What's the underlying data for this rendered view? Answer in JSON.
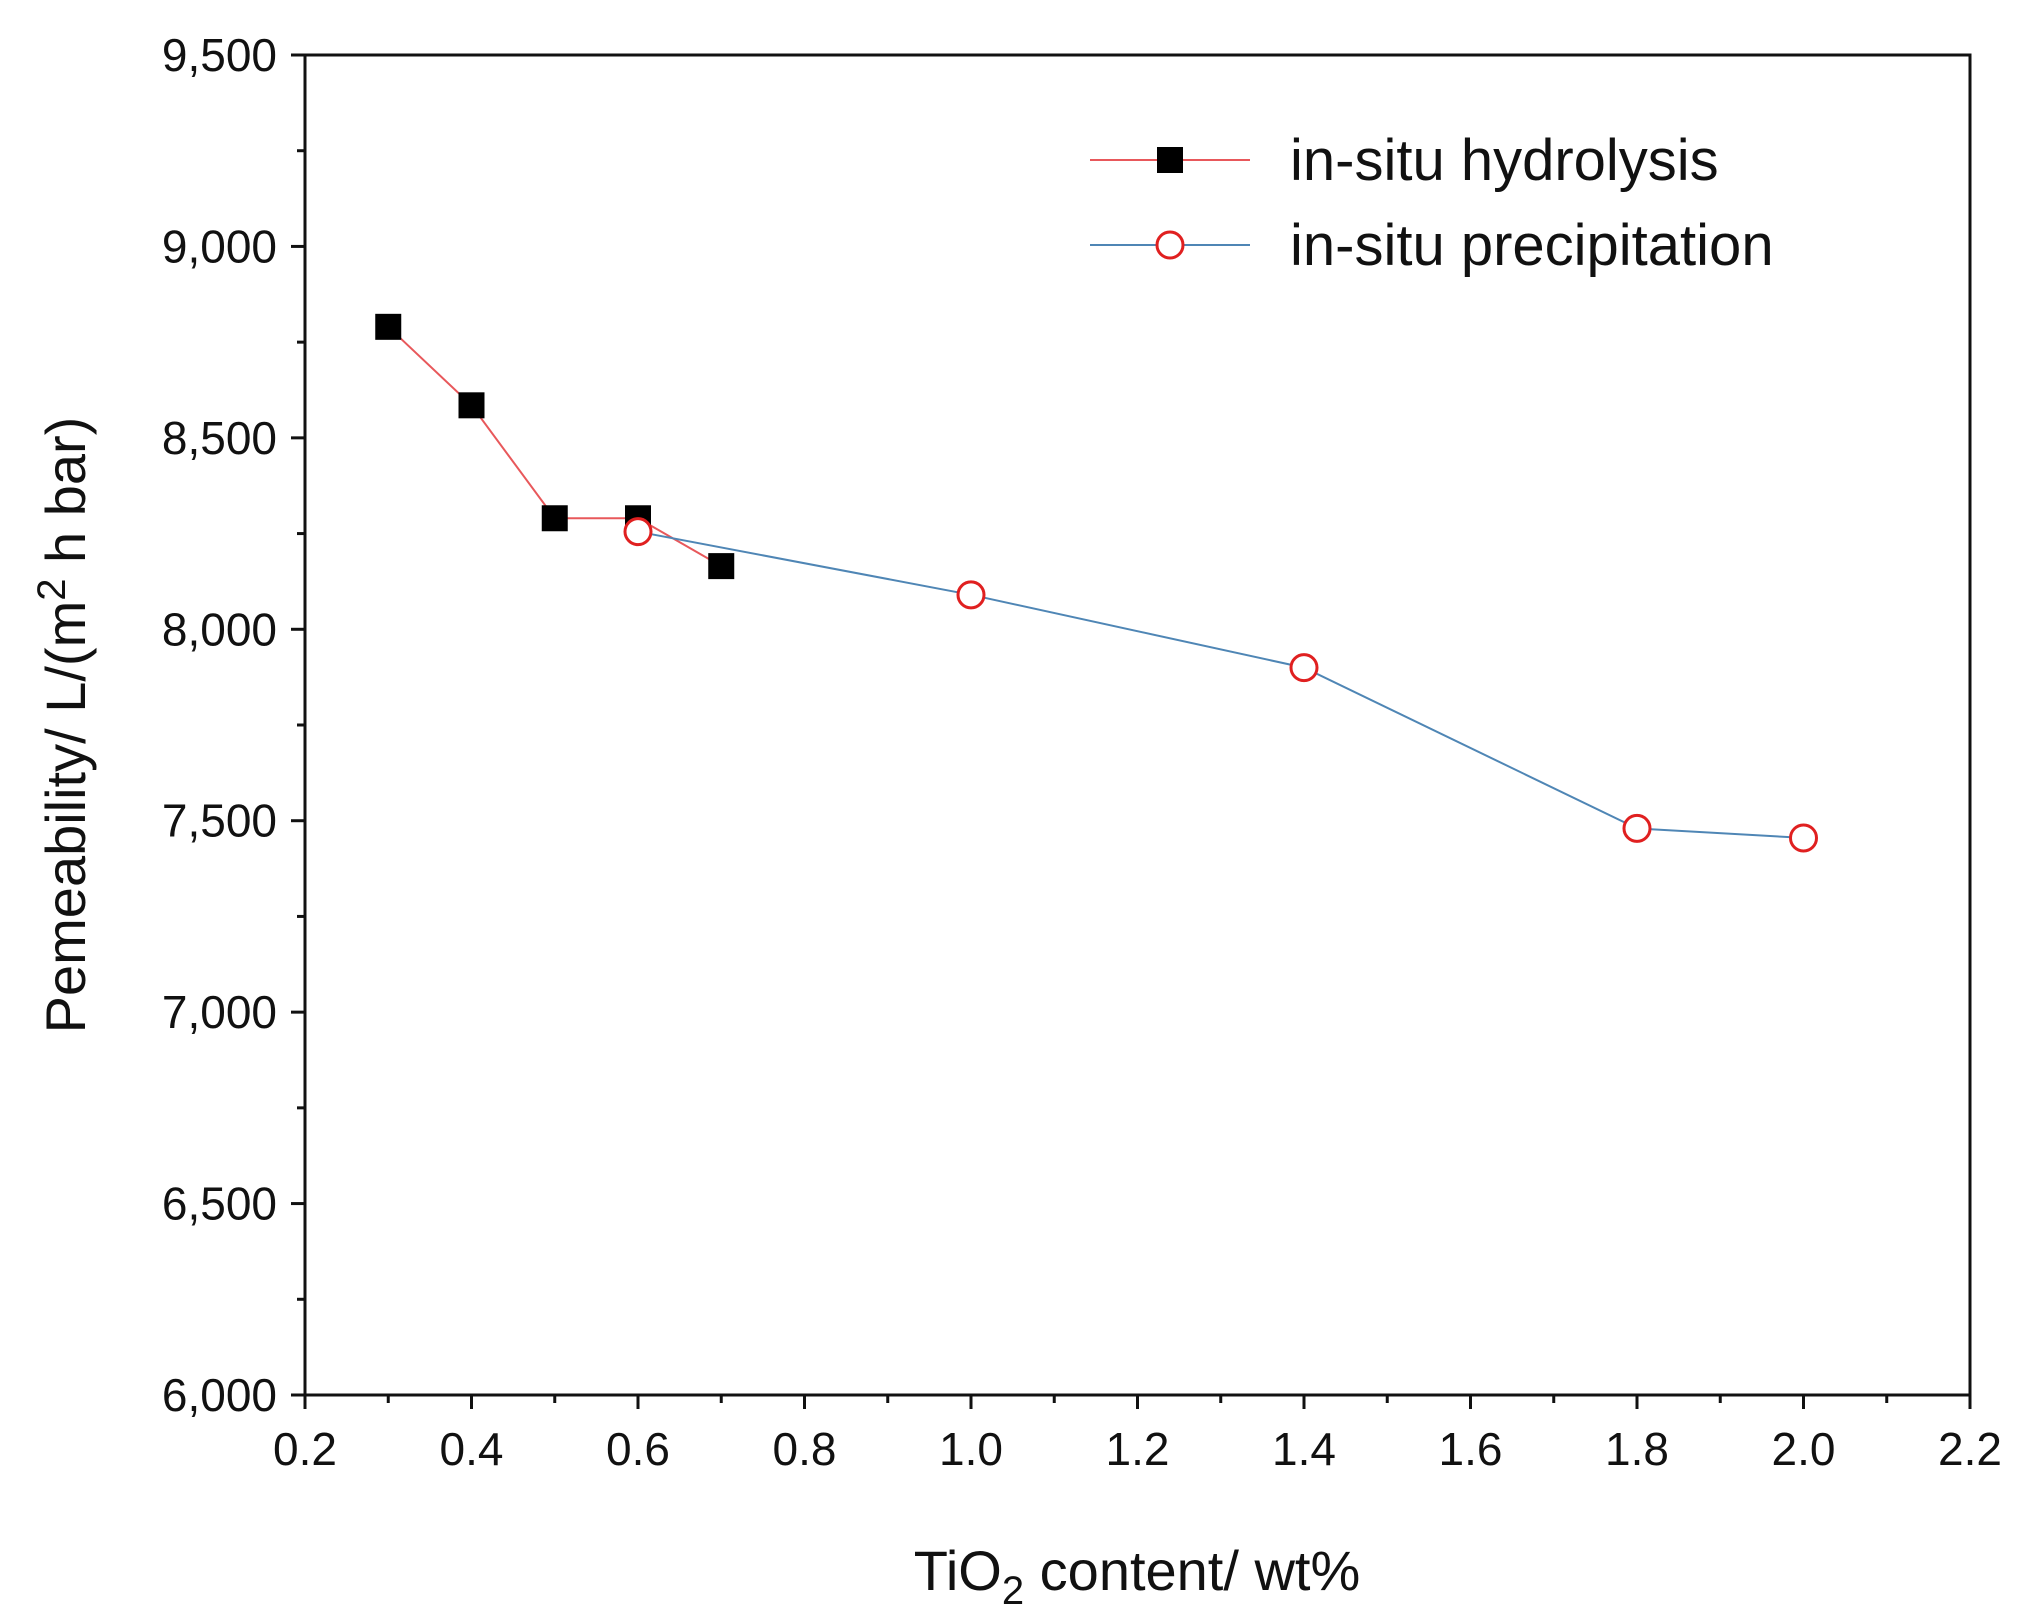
{
  "chart_data": {
    "type": "line",
    "title": "",
    "xlabel": {
      "main": "TiO",
      "sub": "2",
      "rest": " content/ wt%"
    },
    "ylabel": {
      "main": "Pemeability/ L/(m",
      "sup": "2",
      "rest": " h bar)"
    },
    "xlim": [
      0.2,
      2.2
    ],
    "ylim": [
      6000,
      9500
    ],
    "xticks": [
      0.2,
      0.4,
      0.6,
      0.8,
      1.0,
      1.2,
      1.4,
      1.6,
      1.8,
      2.0,
      2.2
    ],
    "xtick_labels": [
      "0.2",
      "0.4",
      "0.6",
      "0.8",
      "1.0",
      "1.2",
      "1.4",
      "1.6",
      "1.8",
      "2.0",
      "2.2"
    ],
    "yticks": [
      6000,
      6500,
      7000,
      7500,
      8000,
      8500,
      9000,
      9500
    ],
    "ytick_labels": [
      "6,000",
      "6,500",
      "7,000",
      "7,500",
      "8,000",
      "8,500",
      "9,000",
      "9,500"
    ],
    "grid": false,
    "legend_position": "top-right",
    "series": [
      {
        "name": "in-situ hydrolysis",
        "marker": "square-filled",
        "line_color": "#e8585b",
        "marker_color": "#000000",
        "x": [
          0.3,
          0.4,
          0.5,
          0.6,
          0.7
        ],
        "y": [
          8790,
          8585,
          8290,
          8290,
          8165
        ]
      },
      {
        "name": "in-situ precipitation",
        "marker": "circle-open",
        "line_color": "#4f86b5",
        "marker_color": "#e02020",
        "x": [
          0.6,
          1.0,
          1.4,
          1.8,
          2.0
        ],
        "y": [
          8255,
          8090,
          7900,
          7480,
          7455
        ]
      }
    ]
  }
}
